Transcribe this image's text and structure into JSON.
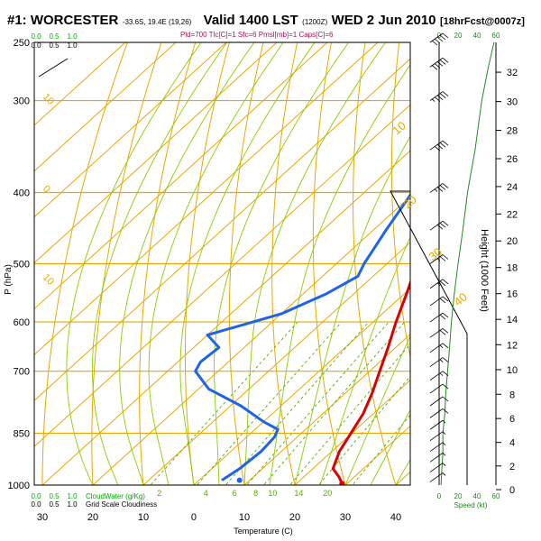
{
  "header": {
    "station": "#1: WORCESTER",
    "coords": "-33.6S, 19.4E (19,26)",
    "valid": "Valid 1400 LST",
    "utc": "(1200Z)",
    "date": "WED 2 Jun 2010",
    "forecast": "[18hrFcst@0007z]",
    "indices": "Pld=700 Tlc[C]=1 Sfc=6 Pmsl[mb]=1 Caps[C]=6"
  },
  "labels": {
    "xlabel": "Temperature (C)",
    "ylabel": "P (hPa)",
    "height_label": "Height (1000 Feet)",
    "speed_label": "Speed (kt)",
    "cloudwater_label": "CloudWater (g/Kg)",
    "gridscale_label": "Grid Scale Cloudiness",
    "cloud_ticks": [
      "0.0",
      "0.5",
      "1.0"
    ]
  },
  "colors": {
    "temperature": "#dd0000",
    "dewpoint": "#1e64e6",
    "dry_adiabat": "#e8a800",
    "isobar": "#e8a800",
    "mixing_ratio": "#55aa00",
    "moist_adiabat": "#8ccc00",
    "wind_speed": "#228822",
    "cloud_axis": "#00aa00"
  },
  "chart_data": {
    "type": "line",
    "title": "",
    "xlabel": "Temperature (C)",
    "ylabel": "P (hPa)",
    "xlim": [
      -35,
      45
    ],
    "ylim": [
      1000,
      250
    ],
    "pressure_ticks": [
      250,
      300,
      400,
      500,
      600,
      700,
      850,
      1000
    ],
    "temperature_ticks": [
      30,
      20,
      10,
      0,
      10,
      20,
      30,
      40
    ],
    "height_ticks_kft": [
      0,
      2,
      4,
      6,
      8,
      10,
      12,
      14,
      16,
      18,
      20,
      22,
      24,
      26,
      28,
      30,
      32
    ],
    "speed_ticks_kt": [
      0,
      20,
      40,
      60
    ],
    "isotherm_labels": [
      "10",
      "0",
      "10"
    ],
    "adiabat_labels": [
      "10",
      "20",
      "30",
      "40"
    ],
    "mixing_ratio_labels": [
      "2",
      "4",
      "6",
      "8",
      "10",
      "14",
      "20"
    ],
    "series": [
      {
        "name": "Temperature",
        "points": [
          {
            "p": 995,
            "t": 29.0
          },
          {
            "p": 975,
            "t": 27.0
          },
          {
            "p": 950,
            "t": 24.0
          },
          {
            "p": 900,
            "t": 21.5
          },
          {
            "p": 850,
            "t": 19.8
          },
          {
            "p": 800,
            "t": 18.0
          },
          {
            "p": 750,
            "t": 15.3
          },
          {
            "p": 700,
            "t": 12.0
          },
          {
            "p": 650,
            "t": 8.5
          },
          {
            "p": 600,
            "t": 4.5
          },
          {
            "p": 550,
            "t": 0.5
          },
          {
            "p": 500,
            "t": -4.0
          },
          {
            "p": 450,
            "t": -9.0
          },
          {
            "p": 400,
            "t": -14.5
          },
          {
            "p": 350,
            "t": -21.0
          },
          {
            "p": 300,
            "t": -28.5
          },
          {
            "p": 260,
            "t": -35.0
          }
        ]
      },
      {
        "name": "Dew Point",
        "points": [
          {
            "p": 985,
            "t": 4.5
          },
          {
            "p": 950,
            "t": 5.5
          },
          {
            "p": 900,
            "t": 6.0
          },
          {
            "p": 860,
            "t": 5.5
          },
          {
            "p": 840,
            "t": 4.5
          },
          {
            "p": 820,
            "t": 0.0
          },
          {
            "p": 780,
            "t": -8.0
          },
          {
            "p": 740,
            "t": -18.0
          },
          {
            "p": 700,
            "t": -24.5
          },
          {
            "p": 680,
            "t": -25.5
          },
          {
            "p": 650,
            "t": -25.0
          },
          {
            "p": 625,
            "t": -30.0
          },
          {
            "p": 585,
            "t": -20.0
          },
          {
            "p": 550,
            "t": -15.5
          },
          {
            "p": 520,
            "t": -13.0
          },
          {
            "p": 500,
            "t": -14.5
          },
          {
            "p": 450,
            "t": -17.5
          },
          {
            "p": 400,
            "t": -20.5
          },
          {
            "p": 350,
            "t": -23.5
          },
          {
            "p": 320,
            "t": -27.0
          },
          {
            "p": 300,
            "t": -30.0
          },
          {
            "p": 260,
            "t": -38.0
          }
        ]
      }
    ],
    "surface_point": {
      "p": 985,
      "t": 8.0
    },
    "wind_speed_profile": [
      {
        "p": 1000,
        "kt": 2
      },
      {
        "p": 950,
        "kt": 3
      },
      {
        "p": 900,
        "kt": 4
      },
      {
        "p": 850,
        "kt": 4
      },
      {
        "p": 800,
        "kt": 6
      },
      {
        "p": 750,
        "kt": 7
      },
      {
        "p": 700,
        "kt": 9
      },
      {
        "p": 650,
        "kt": 11
      },
      {
        "p": 600,
        "kt": 13
      },
      {
        "p": 550,
        "kt": 16
      },
      {
        "p": 500,
        "kt": 20
      },
      {
        "p": 450,
        "kt": 25
      },
      {
        "p": 400,
        "kt": 30
      },
      {
        "p": 350,
        "kt": 38
      },
      {
        "p": 300,
        "kt": 45
      },
      {
        "p": 270,
        "kt": 52
      },
      {
        "p": 250,
        "kt": 58
      }
    ],
    "wind_barbs": [
      {
        "p": 990,
        "kt": 5
      },
      {
        "p": 960,
        "kt": 5
      },
      {
        "p": 930,
        "kt": 5
      },
      {
        "p": 900,
        "kt": 5
      },
      {
        "p": 870,
        "kt": 5
      },
      {
        "p": 840,
        "kt": 5
      },
      {
        "p": 810,
        "kt": 10
      },
      {
        "p": 780,
        "kt": 10
      },
      {
        "p": 750,
        "kt": 10
      },
      {
        "p": 720,
        "kt": 15
      },
      {
        "p": 690,
        "kt": 15
      },
      {
        "p": 660,
        "kt": 15
      },
      {
        "p": 630,
        "kt": 20
      },
      {
        "p": 600,
        "kt": 20
      },
      {
        "p": 570,
        "kt": 20
      },
      {
        "p": 540,
        "kt": 25
      },
      {
        "p": 500,
        "kt": 25
      },
      {
        "p": 450,
        "kt": 30
      },
      {
        "p": 400,
        "kt": 35
      },
      {
        "p": 350,
        "kt": 40
      },
      {
        "p": 300,
        "kt": 45
      },
      {
        "p": 270,
        "kt": 50
      },
      {
        "p": 250,
        "kt": 50
      }
    ],
    "grid": true,
    "legend": "none"
  }
}
